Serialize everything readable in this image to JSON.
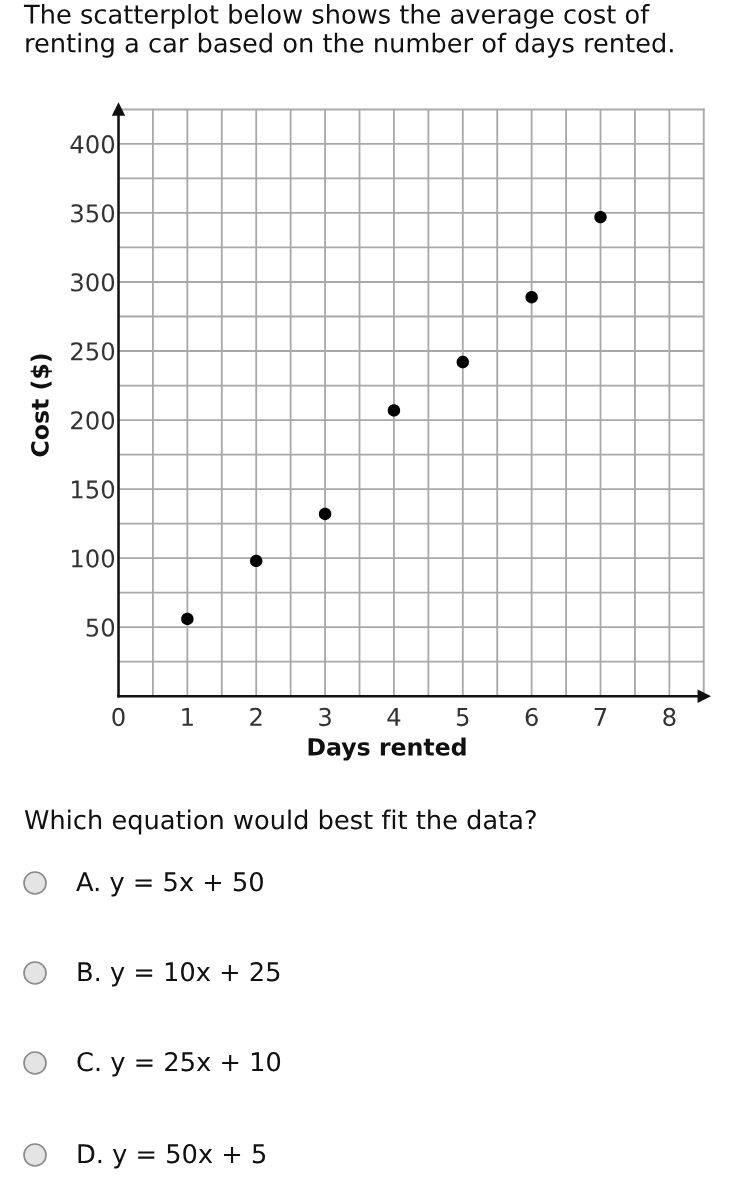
{
  "chart_data": {
    "type": "scatter",
    "title": "The scatterplot below shows the average cost of renting a car based on the number of days rented.",
    "xlabel": "Days rented",
    "ylabel": "Cost ($)",
    "x": [
      1,
      2,
      3,
      4,
      5,
      6,
      7
    ],
    "series": [
      {
        "color": "#000000",
        "values": [
          56,
          98,
          132,
          207,
          242,
          289,
          347
        ]
      }
    ],
    "xlim": [
      0,
      8.5
    ],
    "ylim": [
      0,
      425
    ],
    "xticks": [
      0,
      {
        "value": 0.5,
        "label": null
      },
      1,
      {
        "value": 1.5,
        "label": null
      },
      2,
      {
        "value": 2.5,
        "label": null
      },
      3,
      {
        "value": 3.5,
        "label": null
      },
      4,
      {
        "value": 4.5,
        "label": null
      },
      5,
      {
        "value": 5.5,
        "label": null
      },
      6,
      {
        "value": 6.5,
        "label": null
      },
      7,
      {
        "value": 7.5,
        "label": null
      },
      8,
      {
        "value": 8.5,
        "label": null
      }
    ],
    "yticks": [
      {
        "value": 25,
        "label": null
      },
      50,
      {
        "value": 75,
        "label": null
      },
      100,
      {
        "value": 125,
        "label": null
      },
      150,
      {
        "value": 175,
        "label": null
      },
      200,
      {
        "value": 225,
        "label": null
      },
      250,
      {
        "value": 275,
        "label": null
      },
      300,
      {
        "value": 325,
        "label": null
      },
      350,
      {
        "value": 375,
        "label": null
      },
      400,
      {
        "value": 425,
        "label": null
      }
    ],
    "grid": true,
    "marker": "circle",
    "annotations": [
      "Which equation would best fit the data?",
      "A. y = 5x + 50",
      "B. y = 10x + 25",
      "C. y = 25x + 10",
      "D. y = 50x + 5"
    ]
  }
}
